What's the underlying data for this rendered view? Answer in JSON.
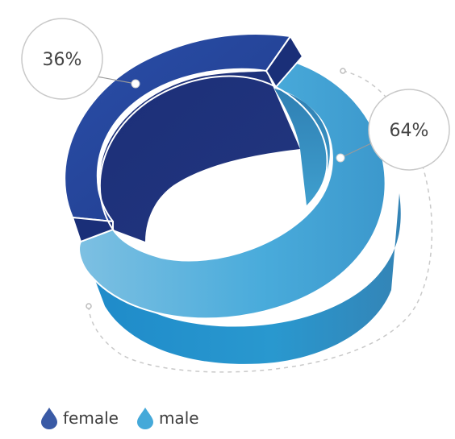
{
  "chart_data": {
    "type": "pie",
    "categories": [
      "female",
      "male"
    ],
    "values": [
      36,
      64
    ],
    "labels": [
      "36%",
      "64%"
    ],
    "colors": {
      "female": "#2b4a9c",
      "male": "#43a8d8"
    },
    "legend_placement": "bottom-left"
  },
  "legend": {
    "items": [
      {
        "label": "female",
        "color": "#3a5aa5"
      },
      {
        "label": "male",
        "color": "#45a9d9"
      }
    ]
  }
}
